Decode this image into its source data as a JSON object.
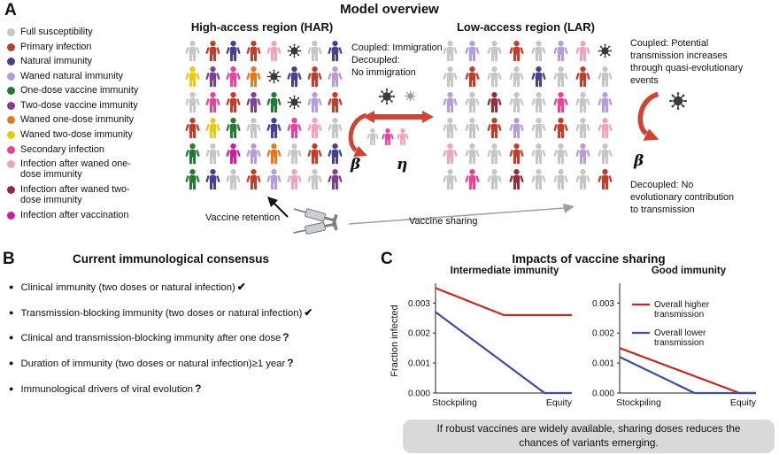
{
  "panels": {
    "a": "A",
    "b": "B",
    "c": "C"
  },
  "colors": {
    "arrow_red": "#cf4433",
    "line_red": "#c42a24",
    "line_blue": "#3c4e9e",
    "note_bg": "#d9d9d9",
    "virus": "#3a3a3a"
  },
  "panelA": {
    "title": "Model overview",
    "legend_items": [
      {
        "key": "S",
        "label": "Full susceptibility"
      },
      {
        "key": "P",
        "label": "Primary infection"
      },
      {
        "key": "N",
        "label": "Natural immunity"
      },
      {
        "key": "W",
        "label": "Waned natural immunity"
      },
      {
        "key": "V1",
        "label": "One-dose vaccine immunity"
      },
      {
        "key": "V2",
        "label": "Two-dose vaccine immunity"
      },
      {
        "key": "W1",
        "label": "Waned one-dose immunity"
      },
      {
        "key": "W2",
        "label": "Waned two-dose immunity"
      },
      {
        "key": "SI",
        "label": "Secondary infection"
      },
      {
        "key": "I1",
        "label": "Infection after waned one-dose immunity"
      },
      {
        "key": "I2",
        "label": "Infection after waned two-dose immunity"
      },
      {
        "key": "IV",
        "label": "Infection after vaccination"
      }
    ],
    "person_colors": {
      "S": "#c6c6c6",
      "P": "#bf3e2b",
      "N": "#46408f",
      "W": "#b79dd8",
      "V1": "#237a33",
      "V2": "#7e3f97",
      "W1": "#e07b22",
      "W2": "#e6c919",
      "SI": "#e8439a",
      "I1": "#f0a3c0",
      "I2": "#8e2f3a",
      "IV": "#cc1fa0",
      "X": "#3a3a3a",
      "XG": "#9a9a9a"
    },
    "har": {
      "title": "High-access region (HAR)",
      "grid": [
        [
          "S",
          "P",
          "N",
          "P",
          "I1",
          "X",
          "S",
          "N"
        ],
        [
          "W2",
          "V2",
          "SI",
          "W1",
          "X",
          "N",
          "P",
          "W"
        ],
        [
          "S",
          "SI",
          "P",
          "V2",
          "V1",
          "X",
          "W",
          "P"
        ],
        [
          "P",
          "W2",
          "V1",
          "S",
          "N",
          "SI",
          "I1",
          "S"
        ],
        [
          "V1",
          "S",
          "IV",
          "W",
          "W1",
          "S",
          "P",
          "N"
        ],
        [
          "V1",
          "N",
          "S",
          "P",
          "W",
          "I1",
          "S",
          "V2"
        ]
      ]
    },
    "lar": {
      "title": "Low-access region (LAR)",
      "grid": [
        [
          "S",
          "W",
          "S",
          "P",
          "S",
          "W",
          "I1",
          "X"
        ],
        [
          "S",
          "P",
          "S",
          "S",
          "N",
          "S",
          "P",
          "S"
        ],
        [
          "W",
          "S",
          "I2",
          "S",
          "S",
          "SI",
          "S",
          "W"
        ],
        [
          "S",
          "S",
          "P",
          "W",
          "S",
          "P",
          "S",
          "I1"
        ],
        [
          "I1",
          "S",
          "S",
          "P",
          "S",
          "S",
          "W",
          "S"
        ],
        [
          "S",
          "SI",
          "S",
          "I2",
          "S",
          "S",
          "S",
          "P"
        ]
      ]
    },
    "middle": {
      "coupling_text": "Coupled: Immigration\nDecoupled:\nNo immigration",
      "beta": "β",
      "eta": "η",
      "migrants": [
        "S",
        "SI",
        "I1"
      ]
    },
    "right": {
      "coupled_text": "Coupled: Potential\ntransmission increases\nthrough quasi-evolutionary\nevents",
      "decoupled_text": "Decoupled: No\nevolutionary contribution\nto transmission",
      "beta": "β"
    },
    "vaccine_retention_label": "Vaccine retention",
    "vaccine_sharing_label": "Vaccine sharing"
  },
  "panelB": {
    "title": "Current immunological consensus",
    "items": [
      {
        "text": "Clinical immunity (two doses or natural infection)",
        "mark": "✔"
      },
      {
        "text": "Transmission-blocking immunity (two doses or natural infection)",
        "mark": "✔"
      },
      {
        "text": "Clinical and transmission-blocking immunity after one dose",
        "mark": "?"
      },
      {
        "text": "Duration of immunity (two doses or natural infection)≥1 year",
        "mark": "?"
      },
      {
        "text": "Immunological drivers of viral evolution",
        "mark": "?"
      }
    ]
  },
  "panelC": {
    "title": "Impacts of vaccine sharing",
    "ylabel": "Fraction infected",
    "note": "If robust vaccines are widely available, sharing doses reduces the chances of variants emerging."
  },
  "chart_data": [
    {
      "type": "line",
      "title": "Intermediate immunity",
      "xticks": [
        "Stockpiling",
        "Equity"
      ],
      "yticks": [
        {
          "value": 0.0,
          "label": "0.000"
        },
        {
          "value": 0.001,
          "label": "0.001"
        },
        {
          "value": 0.002,
          "label": "0.002"
        },
        {
          "value": 0.003,
          "label": "0.003"
        }
      ],
      "ylim": [
        0,
        0.0036
      ],
      "xlim": [
        0,
        1
      ],
      "series": [
        {
          "name": "Overall higher transmission",
          "color": "#c42a24",
          "points": [
            [
              0,
              0.0035
            ],
            [
              0.5,
              0.0026
            ],
            [
              1,
              0.0026
            ]
          ]
        },
        {
          "name": "Overall lower transmission",
          "color": "#3c4e9e",
          "points": [
            [
              0,
              0.0027
            ],
            [
              0.8,
              0.0
            ],
            [
              1,
              0.0
            ]
          ]
        }
      ]
    },
    {
      "type": "line",
      "title": "Good immunity",
      "legend": "top",
      "xticks": [
        "Stockpiling",
        "Equity"
      ],
      "yticks": [
        {
          "value": 0.0,
          "label": "0.000"
        },
        {
          "value": 0.001,
          "label": "0.001"
        },
        {
          "value": 0.002,
          "label": "0.002"
        },
        {
          "value": 0.003,
          "label": "0.003"
        }
      ],
      "ylim": [
        0,
        0.0036
      ],
      "xlim": [
        0,
        1
      ],
      "series": [
        {
          "name": "Overall higher transmission",
          "color": "#c42a24",
          "points": [
            [
              0,
              0.0015
            ],
            [
              0.88,
              0.0
            ],
            [
              1,
              0.0
            ]
          ]
        },
        {
          "name": "Overall lower transmission",
          "color": "#3c4e9e",
          "points": [
            [
              0,
              0.0012
            ],
            [
              0.55,
              0.0
            ],
            [
              1,
              0.0
            ]
          ]
        }
      ]
    }
  ]
}
